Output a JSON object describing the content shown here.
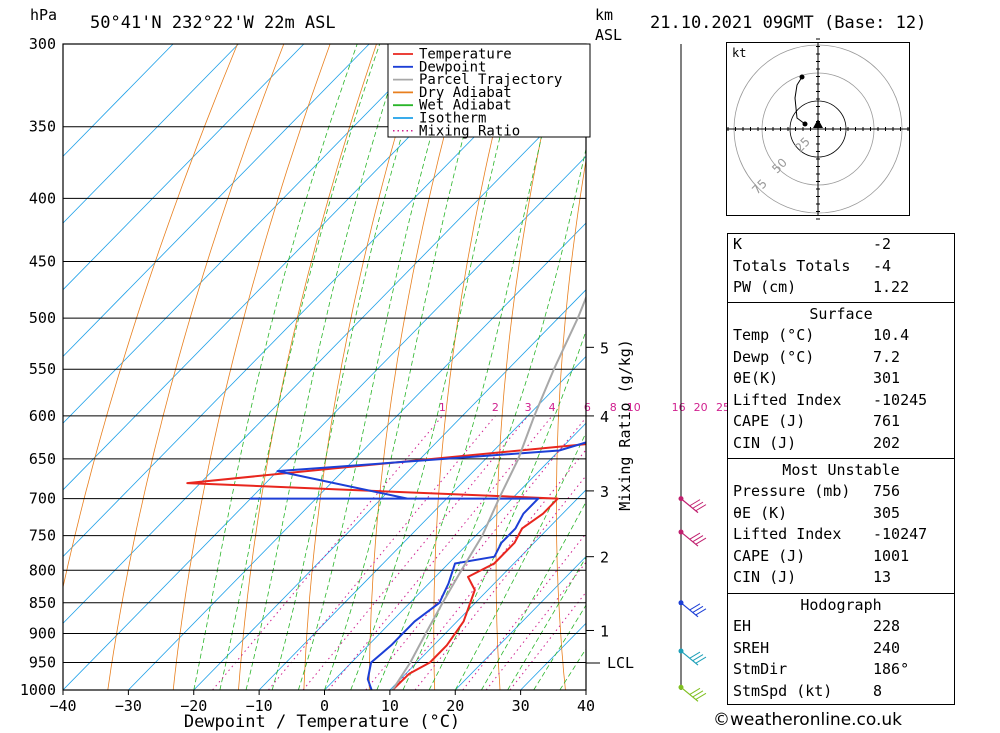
{
  "header": {
    "location": "50°41'N  232°22'W  22m  ASL",
    "datetime": "21.10.2021  09GMT  (Base: 12)",
    "pressure_unit": "hPa",
    "height_unit_line1": "km",
    "height_unit_line2": "ASL"
  },
  "axes": {
    "xlabel": "Dewpoint / Temperature (°C)",
    "mixing_label": "Mixing Ratio (g/kg)",
    "lcl_label": "LCL"
  },
  "legend": [
    {
      "label": "Temperature",
      "color": "#e8261e",
      "style": "solid"
    },
    {
      "label": "Dewpoint",
      "color": "#1c3fd6",
      "style": "solid"
    },
    {
      "label": "Parcel Trajectory",
      "color": "#a8a8a8",
      "style": "solid"
    },
    {
      "label": "Dry Adiabat",
      "color": "#e87f1e",
      "style": "solid"
    },
    {
      "label": "Wet Adiabat",
      "color": "#2ab52a",
      "style": "solid"
    },
    {
      "label": "Isotherm",
      "color": "#1ea0e8",
      "style": "solid"
    },
    {
      "label": "Mixing Ratio",
      "color": "#d0208f",
      "style": "dotted"
    }
  ],
  "chart_data": {
    "type": "line",
    "title": "",
    "xlim": [
      -40,
      40
    ],
    "x_ticks": [
      "−40",
      "−30",
      "−20",
      "−10",
      "0",
      "10",
      "20",
      "30",
      "40"
    ],
    "pressure_levels": [
      "300",
      "350",
      "400",
      "450",
      "500",
      "550",
      "600",
      "650",
      "700",
      "750",
      "800",
      "850",
      "900",
      "950",
      "1000"
    ],
    "km_ticks": [
      {
        "label": "5",
        "p": 528
      },
      {
        "label": "4",
        "p": 600
      },
      {
        "label": "3",
        "p": 690
      },
      {
        "label": "2",
        "p": 780
      },
      {
        "label": "1",
        "p": 895
      }
    ],
    "lcl_pressure": 950,
    "mixing_ratio_labels": [
      "1",
      "2",
      "3",
      "4",
      "6",
      "8",
      "10",
      "16",
      "20",
      "25"
    ],
    "series": [
      {
        "name": "Temperature",
        "points": [
          [
            10.4,
            1000
          ],
          [
            10.5,
            970
          ],
          [
            12,
            950
          ],
          [
            12,
            920
          ],
          [
            11,
            880
          ],
          [
            8,
            830
          ],
          [
            5,
            810
          ],
          [
            7,
            790
          ],
          [
            7,
            760
          ],
          [
            6,
            740
          ],
          [
            7,
            720
          ],
          [
            7,
            700
          ],
          [
            -52,
            680
          ],
          [
            -30,
            660
          ],
          [
            6,
            630
          ],
          [
            7,
            620
          ],
          [
            26,
            500
          ],
          [
            29,
            450
          ],
          [
            31,
            400
          ],
          [
            32,
            365
          ]
        ]
      },
      {
        "name": "Dewpoint",
        "points": [
          [
            7.2,
            1000
          ],
          [
            5,
            980
          ],
          [
            3,
            950
          ],
          [
            3.5,
            920
          ],
          [
            3.5,
            880
          ],
          [
            4.5,
            850
          ],
          [
            3,
            820
          ],
          [
            1,
            790
          ],
          [
            6,
            780
          ],
          [
            5,
            760
          ],
          [
            5,
            740
          ],
          [
            4,
            720
          ],
          [
            4,
            700
          ],
          [
            -40,
            700
          ],
          [
            -16,
            700
          ],
          [
            -40,
            665
          ],
          [
            0,
            640
          ],
          [
            3,
            630
          ]
        ]
      },
      {
        "name": "Parcel Trajectory",
        "points": [
          [
            10.4,
            1000
          ],
          [
            9,
            950
          ],
          [
            7,
            900
          ],
          [
            5,
            850
          ],
          [
            3,
            800
          ],
          [
            1,
            750
          ],
          [
            -2,
            700
          ],
          [
            -5,
            650
          ],
          [
            -9,
            600
          ],
          [
            -13,
            550
          ],
          [
            -17,
            500
          ],
          [
            -22,
            450
          ],
          [
            -27,
            400
          ],
          [
            -33,
            350
          ],
          [
            -37,
            310
          ]
        ]
      }
    ]
  },
  "wind_profile": [
    {
      "p": 700,
      "color": "#c0206f"
    },
    {
      "p": 745,
      "color": "#c0206f"
    },
    {
      "p": 850,
      "color": "#1c3fd6"
    },
    {
      "p": 930,
      "color": "#1ea0b8"
    },
    {
      "p": 995,
      "color": "#80c020"
    }
  ],
  "hodograph": {
    "unit": "kt",
    "ring_labels": [
      "25",
      "50",
      "75"
    ]
  },
  "indices": [
    {
      "k": "K",
      "v": "-2"
    },
    {
      "k": "Totals Totals",
      "v": "-4"
    },
    {
      "k": "PW (cm)",
      "v": "1.22"
    }
  ],
  "surface": {
    "title": "Surface",
    "rows": [
      {
        "k": "Temp (°C)",
        "v": "10.4"
      },
      {
        "k": "Dewp (°C)",
        "v": "7.2"
      },
      {
        "k": "θE(K)",
        "v": "301"
      },
      {
        "k": "Lifted Index",
        "v": "-10245"
      },
      {
        "k": "CAPE (J)",
        "v": "761"
      },
      {
        "k": "CIN (J)",
        "v": "202"
      }
    ]
  },
  "most_unstable": {
    "title": "Most Unstable",
    "rows": [
      {
        "k": "Pressure (mb)",
        "v": "756"
      },
      {
        "k": "θE (K)",
        "v": "305"
      },
      {
        "k": "Lifted Index",
        "v": "-10247"
      },
      {
        "k": "CAPE (J)",
        "v": "1001"
      },
      {
        "k": "CIN (J)",
        "v": "13"
      }
    ]
  },
  "hodograph_table": {
    "title": "Hodograph",
    "rows": [
      {
        "k": "EH",
        "v": "228"
      },
      {
        "k": "SREH",
        "v": "240"
      },
      {
        "k": "StmDir",
        "v": "186°"
      },
      {
        "k": "StmSpd (kt)",
        "v": "8"
      }
    ]
  },
  "credit": "©weatheronline.co.uk"
}
